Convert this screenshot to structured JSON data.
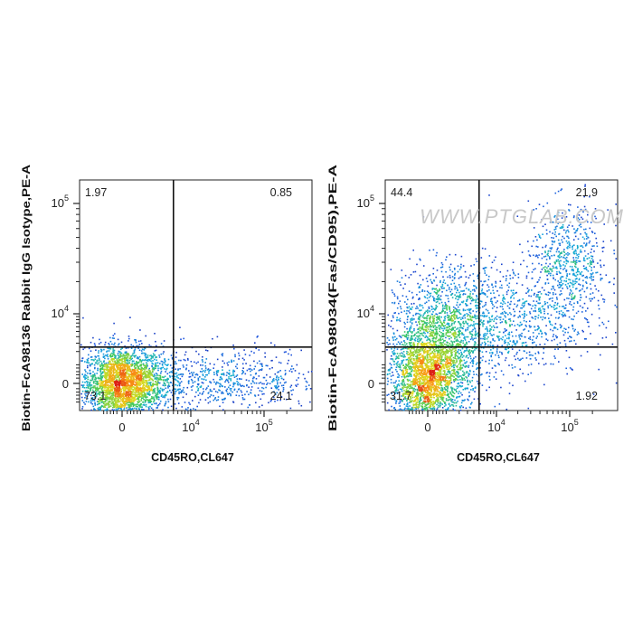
{
  "watermark": "WWW.PTGLAB.COM",
  "chart_data": [
    {
      "type": "scatter",
      "title": "",
      "xlabel": "CD45RO,CL647",
      "ylabel": "Biotin-FcA98136 Rabbit IgG Isotype,PE-A",
      "x_ticks": [
        {
          "base": "0",
          "exp": "",
          "value": 0
        },
        {
          "base": "10",
          "exp": "4",
          "value": 10000
        },
        {
          "base": "10",
          "exp": "5",
          "value": 100000
        }
      ],
      "y_ticks": [
        {
          "base": "0",
          "exp": "",
          "value": 0
        },
        {
          "base": "10",
          "exp": "4",
          "value": 10000
        },
        {
          "base": "10",
          "exp": "5",
          "value": 100000
        }
      ],
      "scale": "biexponential",
      "gate_x": 5000,
      "gate_y": 2500,
      "quadrants": {
        "top_left": "1.97",
        "top_right": "0.85",
        "bottom_left": "73.1",
        "bottom_right": "24.1"
      },
      "populations": [
        {
          "cx": 0,
          "cy": 0,
          "sx": 0.35,
          "sy": 0.32,
          "n": 2600
        },
        {
          "cx": 1.45,
          "cy": 0.05,
          "sx": 1.1,
          "sy": 0.28,
          "n": 900
        }
      ]
    },
    {
      "type": "scatter",
      "title": "",
      "xlabel": "CD45RO,CL647",
      "ylabel": "Biotin-FcA98034(Fas/CD95),PE-A",
      "x_ticks": [
        {
          "base": "0",
          "exp": "",
          "value": 0
        },
        {
          "base": "10",
          "exp": "4",
          "value": 10000
        },
        {
          "base": "10",
          "exp": "5",
          "value": 100000
        }
      ],
      "y_ticks": [
        {
          "base": "0",
          "exp": "",
          "value": 0
        },
        {
          "base": "10",
          "exp": "4",
          "value": 10000
        },
        {
          "base": "10",
          "exp": "5",
          "value": 100000
        }
      ],
      "scale": "biexponential",
      "gate_x": 5000,
      "gate_y": 2500,
      "quadrants": {
        "top_left": "44.4",
        "top_right": "21.9",
        "bottom_left": "31.7",
        "bottom_right": "1.92"
      },
      "populations": [
        {
          "cx": 0,
          "cy": 0.05,
          "sx": 0.33,
          "sy": 0.45,
          "n": 2300
        },
        {
          "cx": 0.2,
          "cy": 0.9,
          "sx": 0.45,
          "sy": 0.55,
          "n": 1200
        },
        {
          "cx": 1.3,
          "cy": 1.1,
          "sx": 0.7,
          "sy": 0.5,
          "n": 900
        },
        {
          "cx": 2.45,
          "cy": 2.05,
          "sx": 0.35,
          "sy": 0.5,
          "n": 650
        }
      ]
    }
  ]
}
